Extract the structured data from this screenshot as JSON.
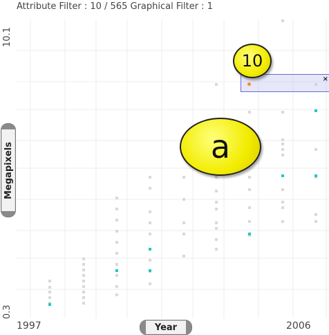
{
  "header": {
    "filter_text": "Attribute Filter : 10 / 565 Graphical Filter : 1"
  },
  "axes": {
    "y_label": "Megapixels",
    "x_label": "Year",
    "y_top_tick": "10.1",
    "y_bottom_tick": "0.3",
    "x_left_tick": "1997",
    "x_right_tick": "2006"
  },
  "annotations": {
    "bubble_a": "a",
    "bubble_count": "10",
    "close_glyph": "×"
  },
  "colors": {
    "point_gray": "#d9d9d9",
    "point_teal": "#1ec8c8",
    "point_orange": "#ff8c1a",
    "bubble": "#f2ec00",
    "selection": "#6a6ad0"
  }
}
